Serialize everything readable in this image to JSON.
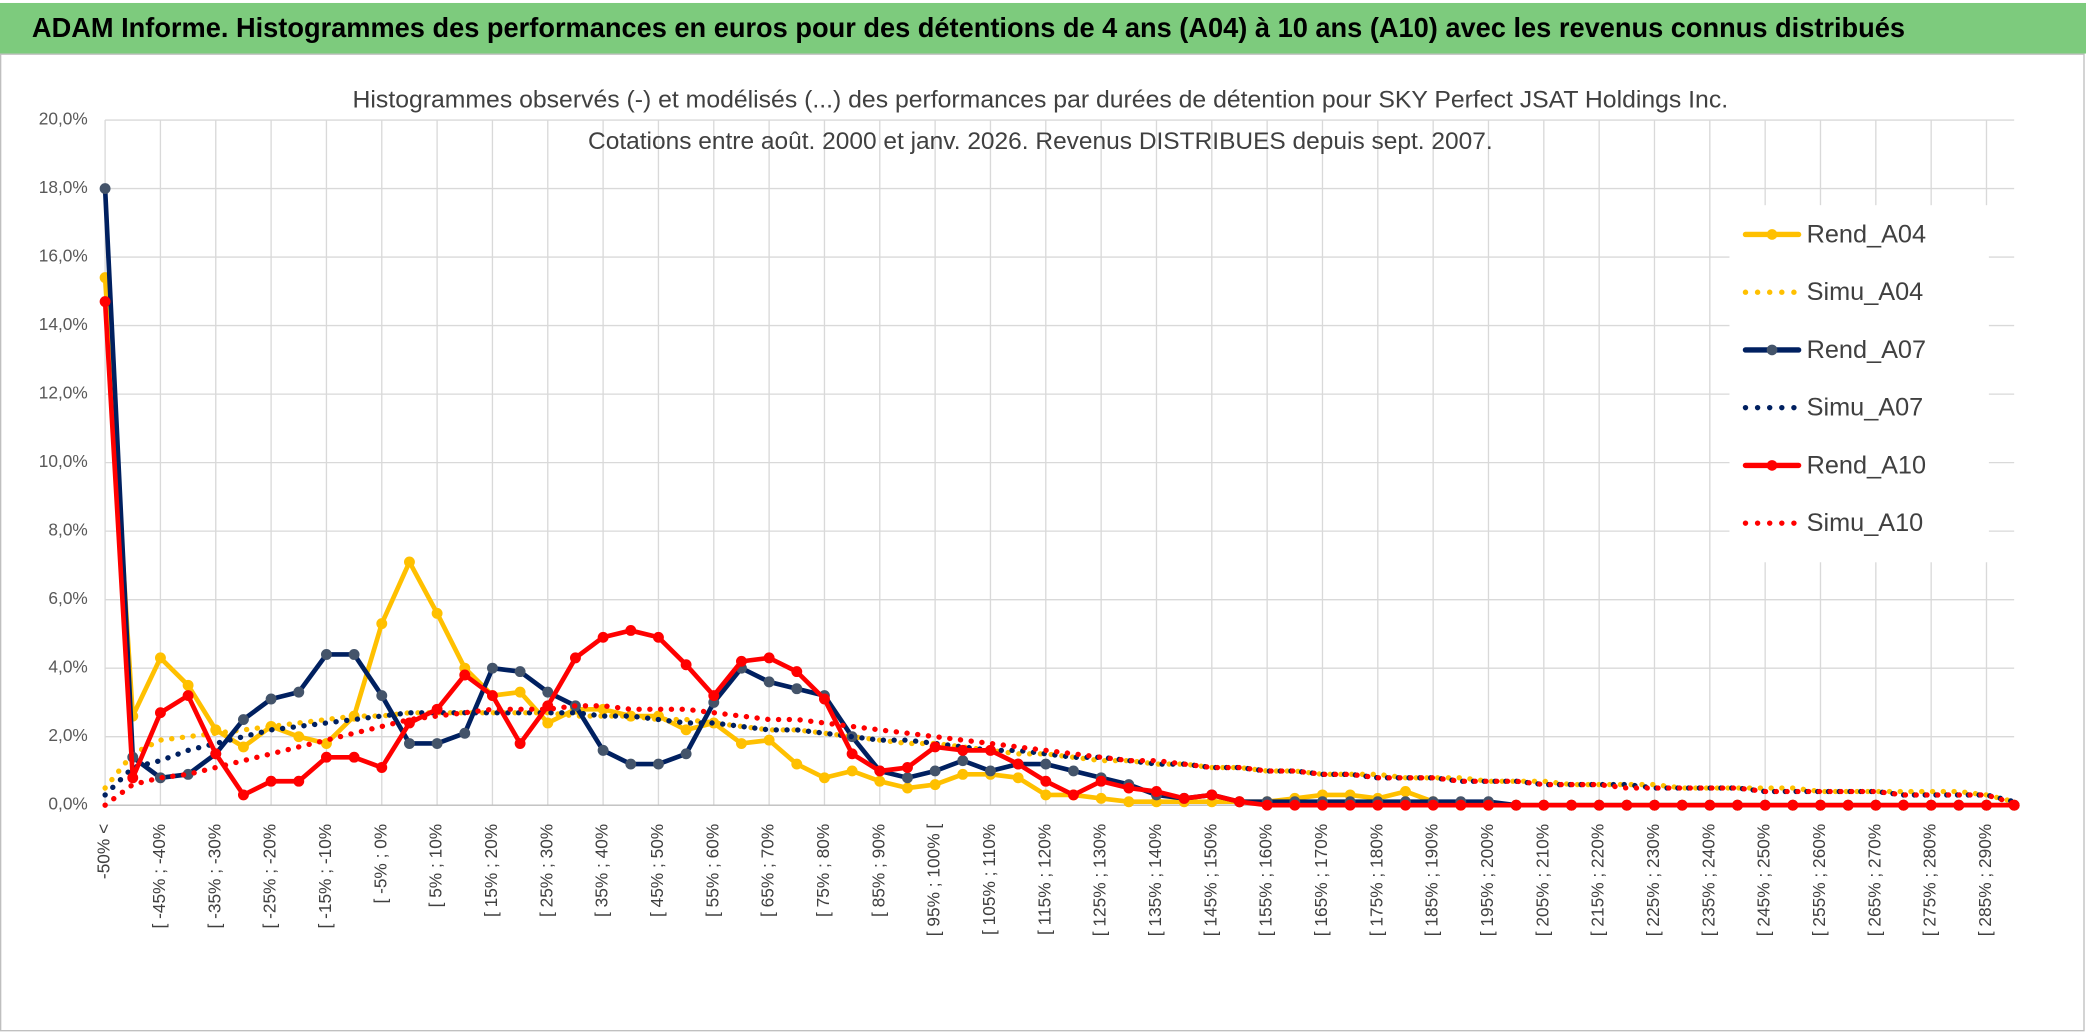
{
  "header": {
    "title": "ADAM Informe. Histogrammes des performances en euros pour des détentions de 4 ans (A04) à 10 ans (A10) avec les revenus connus distribués"
  },
  "chart_data": {
    "type": "line",
    "title": "Histogrammes observés (-) et modélisés (...) des performances par durées de détention pour SKY Perfect JSAT Holdings Inc.",
    "subtitle": "Cotations entre août. 2000 et janv. 2026. Revenus DISTRIBUES depuis sept. 2007.",
    "categories": [
      "-50% <",
      null,
      "[ -45% ; -40%",
      null,
      "[ -35% ; -30%",
      null,
      "[ -25% ; -20%",
      null,
      "[ -15% ; -10%",
      null,
      "[ -5% ; 0%",
      null,
      "[ 5% ; 10%",
      null,
      "[ 15% ; 20%",
      null,
      "[ 25% ; 30%",
      null,
      "[ 35% ; 40%",
      null,
      "[ 45% ; 50%",
      null,
      "[ 55% ; 60%",
      null,
      "[ 65% ; 70%",
      null,
      "[ 75% ; 80%",
      null,
      "[ 85% ; 90%",
      null,
      "[ 95% ; 100% [",
      null,
      "[ 105% ; 110%",
      null,
      "[ 115% ; 120%",
      null,
      "[ 125% ; 130%",
      null,
      "[ 135% ; 140%",
      null,
      "[ 145% ; 150%",
      null,
      "[ 155% ; 160%",
      null,
      "[ 165% ; 170%",
      null,
      "[ 175% ; 180%",
      null,
      "[ 185% ; 190%",
      null,
      "[ 195% ; 200%",
      null,
      "[ 205% ; 210%",
      null,
      "[ 215% ; 220%",
      null,
      "[ 225% ; 230%",
      null,
      "[ 235% ; 240%",
      null,
      "[ 245% ; 250%",
      null,
      "[ 255% ; 260%",
      null,
      "[ 265% ; 270%",
      null,
      "[ 275% ; 280%",
      null,
      "[ 285% ; 290%",
      null
    ],
    "series": [
      {
        "name": "Rend_A04",
        "color": "#FFC000",
        "dash": "solid",
        "marker": true,
        "values": [
          15.4,
          2.6,
          4.3,
          3.5,
          2.2,
          1.7,
          2.3,
          2.0,
          1.8,
          2.6,
          5.3,
          7.1,
          5.6,
          4.0,
          3.2,
          3.3,
          2.4,
          2.8,
          2.8,
          2.6,
          2.6,
          2.2,
          2.4,
          1.8,
          1.9,
          1.2,
          0.8,
          1.0,
          0.7,
          0.5,
          0.6,
          0.9,
          0.9,
          0.8,
          0.3,
          0.3,
          0.2,
          0.1,
          0.1,
          0.1,
          0.1,
          0.1,
          0.1,
          0.2,
          0.3,
          0.3,
          0.2,
          0.4,
          0.1,
          0,
          0,
          0,
          0,
          0,
          0,
          0,
          0,
          0,
          0,
          0,
          0,
          0,
          0,
          0,
          0,
          0,
          0,
          0,
          0,
          0
        ]
      },
      {
        "name": "Simu_A04",
        "color": "#FFC000",
        "dash": "dotted",
        "marker": false,
        "values": [
          0.5,
          1.5,
          1.9,
          2.0,
          2.1,
          2.2,
          2.3,
          2.4,
          2.5,
          2.6,
          2.6,
          2.7,
          2.7,
          2.7,
          2.7,
          2.7,
          2.7,
          2.6,
          2.6,
          2.6,
          2.5,
          2.5,
          2.4,
          2.3,
          2.2,
          2.2,
          2.1,
          2.0,
          1.9,
          1.8,
          1.8,
          1.7,
          1.6,
          1.5,
          1.5,
          1.4,
          1.3,
          1.3,
          1.2,
          1.2,
          1.1,
          1.1,
          1.0,
          1.0,
          0.9,
          0.9,
          0.9,
          0.8,
          0.8,
          0.8,
          0.7,
          0.7,
          0.7,
          0.6,
          0.6,
          0.6,
          0.6,
          0.5,
          0.5,
          0.5,
          0.5,
          0.5,
          0.4,
          0.4,
          0.4,
          0.4,
          0.4,
          0.4,
          0.3,
          0.1
        ]
      },
      {
        "name": "Rend_A07",
        "color": "#002060",
        "dash": "solid",
        "marker": true,
        "marker_color": "#44546A",
        "values": [
          18.0,
          1.4,
          0.8,
          0.9,
          1.5,
          2.5,
          3.1,
          3.3,
          4.4,
          4.4,
          3.2,
          1.8,
          1.8,
          2.1,
          4.0,
          3.9,
          3.3,
          2.9,
          1.6,
          1.2,
          1.2,
          1.5,
          3.0,
          4.0,
          3.6,
          3.4,
          3.2,
          2.0,
          1.0,
          0.8,
          1.0,
          1.3,
          1.0,
          1.2,
          1.2,
          1.0,
          0.8,
          0.6,
          0.3,
          0.2,
          0.3,
          0.1,
          0.1,
          0.1,
          0.1,
          0.1,
          0.1,
          0.1,
          0.1,
          0.1,
          0.1,
          0,
          0,
          0,
          0,
          0,
          0,
          0,
          0,
          0,
          0,
          0,
          0,
          0,
          0,
          0,
          0,
          0,
          0,
          0
        ]
      },
      {
        "name": "Simu_A07",
        "color": "#002060",
        "dash": "dotted",
        "marker": false,
        "values": [
          0.3,
          1.1,
          1.3,
          1.6,
          1.8,
          2.0,
          2.2,
          2.3,
          2.4,
          2.5,
          2.6,
          2.7,
          2.7,
          2.7,
          2.7,
          2.7,
          2.7,
          2.7,
          2.6,
          2.6,
          2.5,
          2.4,
          2.4,
          2.3,
          2.2,
          2.2,
          2.1,
          2.0,
          1.9,
          1.9,
          1.8,
          1.7,
          1.6,
          1.6,
          1.5,
          1.4,
          1.4,
          1.3,
          1.2,
          1.2,
          1.1,
          1.1,
          1.0,
          1.0,
          0.9,
          0.9,
          0.8,
          0.8,
          0.8,
          0.7,
          0.7,
          0.7,
          0.6,
          0.6,
          0.6,
          0.6,
          0.5,
          0.5,
          0.5,
          0.5,
          0.4,
          0.4,
          0.4,
          0.4,
          0.4,
          0.3,
          0.3,
          0.3,
          0.3,
          0.1
        ]
      },
      {
        "name": "Rend_A10",
        "color": "#FF0000",
        "dash": "solid",
        "marker": true,
        "values": [
          14.7,
          0.8,
          2.7,
          3.2,
          1.5,
          0.3,
          0.7,
          0.7,
          1.4,
          1.4,
          1.1,
          2.4,
          2.8,
          3.8,
          3.2,
          1.8,
          2.9,
          4.3,
          4.9,
          5.1,
          4.9,
          4.1,
          3.2,
          4.2,
          4.3,
          3.9,
          3.1,
          1.5,
          1.0,
          1.1,
          1.7,
          1.6,
          1.6,
          1.2,
          0.7,
          0.3,
          0.7,
          0.5,
          0.4,
          0.2,
          0.3,
          0.1,
          0,
          0,
          0,
          0,
          0,
          0,
          0,
          0,
          0,
          0,
          0,
          0,
          0,
          0,
          0,
          0,
          0,
          0,
          0,
          0,
          0,
          0,
          0,
          0,
          0,
          0,
          0,
          0
        ]
      },
      {
        "name": "Simu_A10",
        "color": "#FF0000",
        "dash": "dotted",
        "marker": false,
        "values": [
          0.0,
          0.6,
          0.8,
          0.9,
          1.1,
          1.3,
          1.5,
          1.7,
          1.9,
          2.1,
          2.3,
          2.5,
          2.6,
          2.7,
          2.8,
          2.8,
          2.8,
          2.9,
          2.9,
          2.8,
          2.8,
          2.8,
          2.7,
          2.6,
          2.5,
          2.5,
          2.4,
          2.3,
          2.2,
          2.1,
          2.0,
          1.9,
          1.8,
          1.7,
          1.6,
          1.5,
          1.4,
          1.3,
          1.3,
          1.2,
          1.1,
          1.1,
          1.0,
          1.0,
          0.9,
          0.9,
          0.8,
          0.8,
          0.8,
          0.7,
          0.7,
          0.7,
          0.6,
          0.6,
          0.6,
          0.5,
          0.5,
          0.5,
          0.5,
          0.5,
          0.4,
          0.4,
          0.4,
          0.4,
          0.4,
          0.3,
          0.3,
          0.3,
          0.3,
          0.05
        ]
      }
    ],
    "ylim": [
      0,
      20
    ],
    "yticks": [
      {
        "value": 0,
        "label": "0,0%"
      },
      {
        "value": 2,
        "label": "2,0%"
      },
      {
        "value": 4,
        "label": "4,0%"
      },
      {
        "value": 6,
        "label": "6,0%"
      },
      {
        "value": 8,
        "label": "8,0%"
      },
      {
        "value": 10,
        "label": "10,0%"
      },
      {
        "value": 12,
        "label": "12,0%"
      },
      {
        "value": 14,
        "label": "14,0%"
      },
      {
        "value": 16,
        "label": "16,0%"
      },
      {
        "value": 18,
        "label": "18,0%"
      },
      {
        "value": 20,
        "label": "20,0%"
      }
    ],
    "grid": true,
    "legend": "right"
  }
}
